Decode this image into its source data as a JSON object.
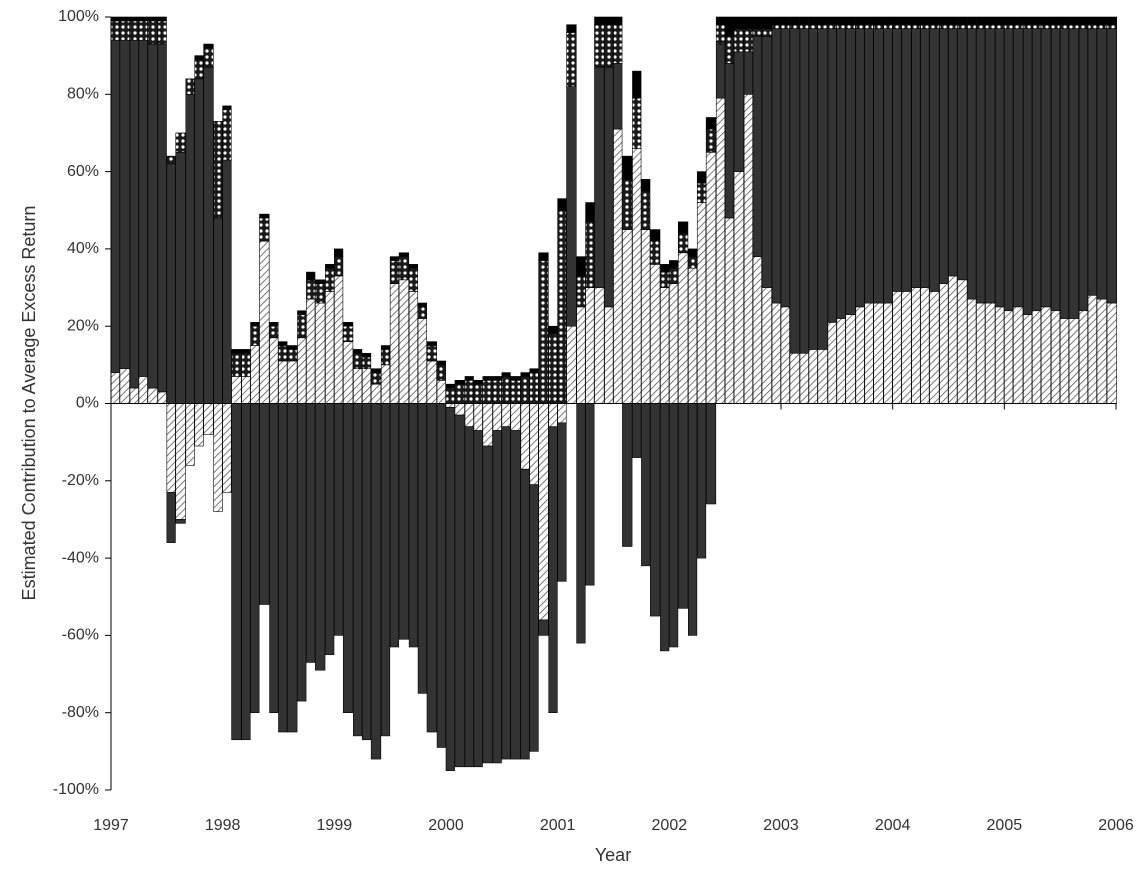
{
  "chart_data": {
    "type": "stacked-bar",
    "x_label": "Year",
    "y_label": "Estimated Contribution to Average Excess Return",
    "xlim": [
      1997,
      2006
    ],
    "xticks": [
      1997,
      1998,
      1999,
      2000,
      2001,
      2002,
      2003,
      2004,
      2005,
      2006
    ],
    "ylim": [
      -100,
      100
    ],
    "yticks": [
      {
        "value": -100,
        "label": "-100%"
      },
      {
        "value": -80,
        "label": "-80%"
      },
      {
        "value": -60,
        "label": "-60%"
      },
      {
        "value": -40,
        "label": "-40%"
      },
      {
        "value": -20,
        "label": "-20%"
      },
      {
        "value": 0,
        "label": "0%"
      },
      {
        "value": 20,
        "label": "20%"
      },
      {
        "value": 40,
        "label": "40%"
      },
      {
        "value": 60,
        "label": "60%"
      },
      {
        "value": 80,
        "label": "80%"
      },
      {
        "value": 100,
        "label": "100%"
      }
    ],
    "x": [
      1997,
      1997.08,
      1997.17,
      1997.25,
      1997.33,
      1997.42,
      1997.5,
      1997.58,
      1997.67,
      1997.75,
      1997.83,
      1997.92,
      1998,
      1998.08,
      1998.17,
      1998.25,
      1998.33,
      1998.42,
      1998.5,
      1998.58,
      1998.67,
      1998.75,
      1998.83,
      1998.92,
      1999,
      1999.08,
      1999.17,
      1999.25,
      1999.33,
      1999.42,
      1999.5,
      1999.58,
      1999.67,
      1999.75,
      1999.83,
      1999.92,
      2000,
      2000.08,
      2000.17,
      2000.25,
      2000.33,
      2000.42,
      2000.5,
      2000.58,
      2000.67,
      2000.75,
      2000.83,
      2000.92,
      2001,
      2001.08,
      2001.17,
      2001.25,
      2001.33,
      2001.42,
      2001.5,
      2001.58,
      2001.67,
      2001.75,
      2001.83,
      2001.92,
      2002,
      2002.08,
      2002.17,
      2002.25,
      2002.33,
      2002.42,
      2002.5,
      2002.58,
      2002.67,
      2002.75,
      2002.83,
      2002.92,
      2003,
      2003.08,
      2003.17,
      2003.25,
      2003.33,
      2003.42,
      2003.5,
      2003.58,
      2003.67,
      2003.75,
      2003.83,
      2003.92,
      2004,
      2004.08,
      2004.17,
      2004.25,
      2004.33,
      2004.42,
      2004.5,
      2004.58,
      2004.67,
      2004.75,
      2004.83,
      2004.92,
      2005,
      2005.08,
      2005.17,
      2005.25,
      2005.33,
      2005.42,
      2005.5,
      2005.58,
      2005.67,
      2005.75,
      2005.83,
      2005.92
    ],
    "series": [
      {
        "color": "#555555",
        "pattern": "hatch",
        "values": [
          8,
          9,
          4,
          7,
          4,
          3,
          -23,
          -30,
          -16,
          -11,
          -8,
          -28,
          -23,
          7,
          7,
          15,
          42,
          17,
          11,
          11,
          17,
          27,
          26,
          29,
          33,
          16,
          9,
          9,
          5,
          10,
          31,
          32,
          29,
          22,
          11,
          6,
          -1,
          -3,
          -6,
          -7,
          -11,
          -7,
          -6,
          -7,
          -17,
          -21,
          -56,
          -6,
          -5,
          20,
          25,
          30,
          30,
          25,
          71,
          45,
          66,
          45,
          36,
          30,
          31,
          39,
          35,
          52,
          65,
          79,
          48,
          60,
          80,
          38,
          30,
          26,
          25,
          13,
          13,
          14,
          14,
          21,
          22,
          23,
          25,
          26,
          26,
          26,
          29,
          29,
          30,
          30,
          29,
          31,
          33,
          32,
          27,
          26,
          26,
          25,
          24,
          25,
          23,
          24,
          25,
          24,
          22,
          22,
          24,
          28,
          27,
          26
        ]
      },
      {
        "color": "#333333",
        "pattern": "solid",
        "values": [
          86,
          85,
          90,
          87,
          89,
          90,
          62,
          65,
          80,
          84,
          87,
          48,
          63,
          0,
          0,
          0,
          0,
          0,
          0,
          0,
          0,
          0,
          0,
          0,
          0,
          0,
          0,
          0,
          0,
          0,
          0,
          0,
          0,
          0,
          0,
          0,
          0,
          0,
          0,
          0,
          0,
          0,
          0,
          0,
          0,
          0,
          0,
          0,
          0,
          62,
          0,
          0,
          57,
          62,
          17,
          0,
          0,
          0,
          0,
          0,
          0,
          0,
          0,
          0,
          0,
          14,
          40,
          31,
          11,
          57,
          65,
          71,
          72,
          84,
          84,
          83,
          83,
          76,
          75,
          74,
          72,
          71,
          71,
          71,
          68,
          68,
          67,
          67,
          68,
          66,
          64,
          65,
          70,
          71,
          71,
          72,
          73,
          72,
          74,
          73,
          72,
          73,
          75,
          75,
          73,
          69,
          70,
          71
        ]
      },
      {
        "color": "#1a1a1a",
        "pattern": "dots",
        "values": [
          5,
          5,
          5,
          5,
          6,
          6,
          2,
          5,
          4,
          5,
          5,
          25,
          13,
          6,
          6,
          5,
          6,
          3,
          4,
          3,
          6,
          5,
          5,
          6,
          5,
          4,
          4,
          3,
          3,
          4,
          6,
          6,
          6,
          3,
          4,
          4,
          4,
          5,
          6,
          5,
          6,
          6,
          7,
          6,
          7,
          8,
          37,
          18,
          50,
          14,
          8,
          17,
          11,
          11,
          10,
          13,
          13,
          10,
          6,
          4,
          4,
          5,
          3,
          5,
          6,
          5,
          7,
          6,
          6,
          2,
          2,
          1,
          1,
          1,
          1,
          1,
          1,
          1,
          1,
          1,
          1,
          1,
          1,
          1,
          1,
          1,
          1,
          1,
          1,
          1,
          1,
          1,
          1,
          1,
          1,
          1,
          1,
          1,
          1,
          1,
          1,
          1,
          1,
          1,
          1,
          1,
          1,
          1
        ]
      },
      {
        "color": "#000000",
        "pattern": "solid",
        "values": [
          1,
          1,
          1,
          1,
          1,
          1,
          0,
          0,
          0,
          1,
          1,
          0,
          1,
          1,
          1,
          1,
          1,
          1,
          1,
          1,
          1,
          2,
          1,
          1,
          2,
          1,
          1,
          1,
          1,
          1,
          1,
          1,
          1,
          1,
          1,
          1,
          1,
          1,
          1,
          1,
          1,
          1,
          1,
          1,
          1,
          1,
          2,
          2,
          3,
          2,
          5,
          5,
          2,
          2,
          2,
          6,
          7,
          3,
          3,
          2,
          2,
          3,
          2,
          3,
          3,
          2,
          5,
          3,
          3,
          3,
          3,
          2,
          2,
          2,
          2,
          2,
          2,
          2,
          2,
          2,
          2,
          2,
          2,
          2,
          2,
          2,
          2,
          2,
          2,
          2,
          2,
          2,
          2,
          2,
          2,
          2,
          2,
          2,
          2,
          2,
          2,
          2,
          2,
          2,
          2,
          2,
          2,
          2
        ]
      },
      {
        "color": "#333333",
        "pattern": "solid",
        "values": [
          0,
          0,
          0,
          0,
          0,
          0,
          -13,
          -1,
          0,
          0,
          0,
          0,
          0,
          -87,
          -87,
          -80,
          -52,
          -80,
          -85,
          -85,
          -77,
          -67,
          -69,
          -65,
          -60,
          -80,
          -86,
          -87,
          -92,
          -86,
          -63,
          -61,
          -63,
          -75,
          -85,
          -89,
          -94,
          -91,
          -88,
          -87,
          -82,
          -86,
          -86,
          -85,
          -75,
          -69,
          -4,
          -74,
          -41,
          0,
          -62,
          -47,
          0,
          0,
          0,
          -37,
          -14,
          -42,
          -55,
          -64,
          -63,
          -53,
          -60,
          -40,
          -26,
          0,
          0,
          0,
          0,
          0,
          0,
          0,
          0,
          0,
          0,
          0,
          0,
          0,
          0,
          0,
          0,
          0,
          0,
          0,
          0,
          0,
          0,
          0,
          0,
          0,
          0,
          0,
          0,
          0,
          0,
          0,
          0,
          0,
          0,
          0,
          0,
          0,
          0,
          0,
          0,
          0,
          0,
          0
        ]
      }
    ]
  }
}
